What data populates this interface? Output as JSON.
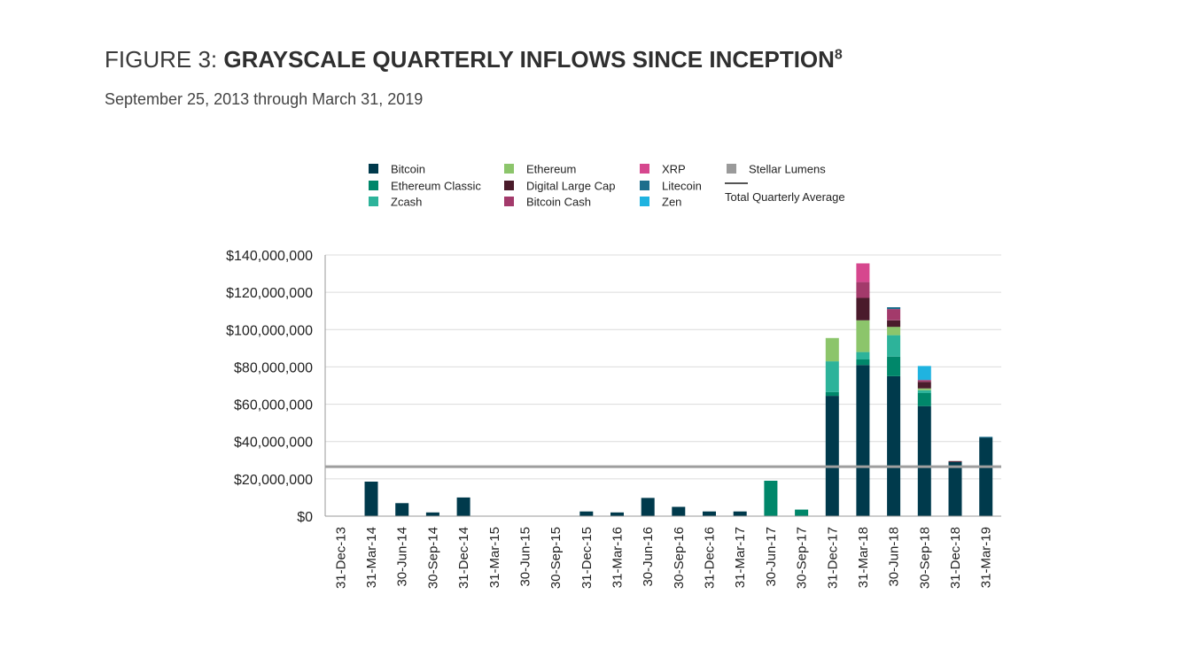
{
  "header": {
    "figure_prefix": "FIGURE 3: ",
    "title": "GRAYSCALE QUARTERLY INFLOWS SINCE INCEPTION",
    "footnote": "8",
    "subtitle": "September 25, 2013 through March 31, 2019"
  },
  "chart_data": {
    "type": "bar",
    "stacked": true,
    "categories": [
      "31-Dec-13",
      "31-Mar-14",
      "30-Jun-14",
      "30-Sep-14",
      "31-Dec-14",
      "31-Mar-15",
      "30-Jun-15",
      "30-Sep-15",
      "31-Dec-15",
      "31-Mar-16",
      "30-Jun-16",
      "30-Sep-16",
      "31-Dec-16",
      "31-Mar-17",
      "30-Jun-17",
      "30-Sep-17",
      "31-Dec-17",
      "31-Mar-18",
      "30-Jun-18",
      "30-Sep-18",
      "31-Dec-18",
      "31-Mar-19"
    ],
    "ylim": [
      0,
      140000000
    ],
    "yticks": [
      {
        "value": 0,
        "label": "$0"
      },
      {
        "value": 20000000,
        "label": "$20,000,000"
      },
      {
        "value": 40000000,
        "label": "$40,000,000"
      },
      {
        "value": 60000000,
        "label": "$60,000,000"
      },
      {
        "value": 80000000,
        "label": "$80,000,000"
      },
      {
        "value": 100000000,
        "label": "$100,000,000"
      },
      {
        "value": 120000000,
        "label": "$120,000,000"
      },
      {
        "value": 140000000,
        "label": "$140,000,000"
      }
    ],
    "grid": true,
    "legend_position": "top",
    "series": [
      {
        "name": "Bitcoin",
        "color": "#003a4c",
        "values": [
          0,
          18500000,
          7000000,
          2000000,
          10000000,
          0,
          0,
          0,
          2500000,
          2000000,
          9800000,
          5000000,
          2500000,
          2500000,
          0,
          0,
          64500000,
          81000000,
          75000000,
          59000000,
          29000000,
          42000000
        ]
      },
      {
        "name": "Ethereum Classic",
        "color": "#00876a",
        "values": [
          0,
          0,
          0,
          0,
          0,
          0,
          0,
          0,
          0,
          0,
          0,
          0,
          0,
          0,
          19000000,
          3500000,
          2000000,
          3000000,
          10500000,
          7000000,
          0,
          0
        ]
      },
      {
        "name": "Zcash",
        "color": "#2db39a",
        "values": [
          0,
          0,
          0,
          0,
          0,
          0,
          0,
          0,
          0,
          0,
          0,
          0,
          0,
          0,
          0,
          0,
          16500000,
          4000000,
          11500000,
          1500000,
          0,
          0
        ]
      },
      {
        "name": "Ethereum",
        "color": "#8cc56b",
        "values": [
          0,
          0,
          0,
          0,
          0,
          0,
          0,
          0,
          0,
          0,
          0,
          0,
          0,
          0,
          0,
          0,
          12500000,
          17000000,
          4500000,
          1000000,
          0,
          0
        ]
      },
      {
        "name": "Digital Large Cap",
        "color": "#4a1b2b",
        "values": [
          0,
          0,
          0,
          0,
          0,
          0,
          0,
          0,
          0,
          0,
          0,
          0,
          0,
          0,
          0,
          0,
          0,
          12000000,
          3500000,
          3500000,
          500000,
          0
        ]
      },
      {
        "name": "Bitcoin Cash",
        "color": "#a33a6b",
        "values": [
          0,
          0,
          0,
          0,
          0,
          0,
          0,
          0,
          0,
          0,
          0,
          0,
          0,
          0,
          0,
          0,
          0,
          8500000,
          6000000,
          1000000,
          0,
          0
        ]
      },
      {
        "name": "XRP",
        "color": "#d6478e",
        "values": [
          0,
          0,
          0,
          0,
          0,
          0,
          0,
          0,
          0,
          0,
          0,
          0,
          0,
          0,
          0,
          0,
          0,
          10000000,
          0,
          0,
          0,
          0
        ]
      },
      {
        "name": "Litecoin",
        "color": "#1d6e8c",
        "values": [
          0,
          0,
          0,
          0,
          0,
          0,
          0,
          0,
          0,
          0,
          0,
          0,
          0,
          0,
          0,
          0,
          0,
          0,
          1000000,
          0,
          0,
          500000
        ]
      },
      {
        "name": "Zen",
        "color": "#1fb3e0",
        "values": [
          0,
          0,
          0,
          0,
          0,
          0,
          0,
          0,
          0,
          0,
          0,
          0,
          0,
          0,
          0,
          0,
          0,
          0,
          0,
          7500000,
          0,
          0
        ]
      },
      {
        "name": "Stellar Lumens",
        "color": "#9a9a9a",
        "values": [
          0,
          0,
          0,
          0,
          0,
          0,
          0,
          0,
          0,
          0,
          0,
          0,
          0,
          0,
          0,
          0,
          0,
          0,
          0,
          0,
          0,
          0
        ]
      }
    ],
    "average_line": {
      "name": "Total Quarterly Average",
      "value": 26500000,
      "color": "#9e9e9e"
    },
    "legend_layout": [
      [
        "Bitcoin",
        "Ethereum",
        "XRP",
        "Stellar Lumens"
      ],
      [
        "Ethereum Classic",
        "Digital Large Cap",
        "Litecoin",
        "Total Quarterly Average"
      ],
      [
        "Zcash",
        "Bitcoin Cash",
        "Zen"
      ]
    ]
  }
}
